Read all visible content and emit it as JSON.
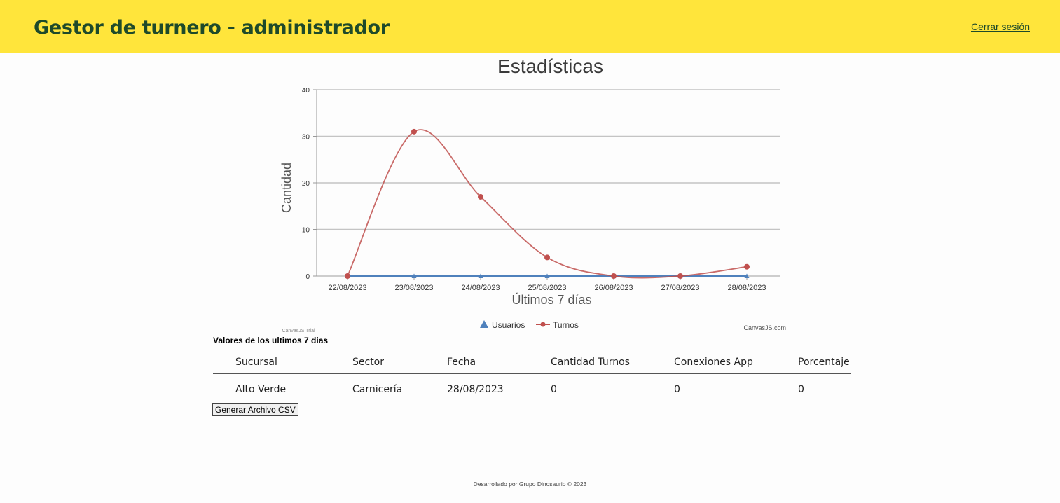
{
  "header": {
    "title": "Gestor de turnero - administrador",
    "logout_label": "Cerrar sesión"
  },
  "chart_data": {
    "type": "line",
    "title": "Estadísticas",
    "xlabel": "Últimos 7 días",
    "ylabel": "Cantidad",
    "categories": [
      "22/08/2023",
      "23/08/2023",
      "24/08/2023",
      "25/08/2023",
      "26/08/2023",
      "27/08/2023",
      "28/08/2023"
    ],
    "ylim": [
      0,
      40
    ],
    "yticks": [
      0,
      10,
      20,
      30,
      40
    ],
    "grid": true,
    "legend_placement": "bottom",
    "series": [
      {
        "name": "Usuarios",
        "marker": "triangle",
        "color": "#4f81bc",
        "values": [
          0,
          0,
          0,
          0,
          0,
          0,
          0
        ]
      },
      {
        "name": "Turnos",
        "marker": "circle",
        "color": "#c0504e",
        "values": [
          0,
          31,
          17,
          4,
          0,
          0,
          2
        ]
      }
    ],
    "annotations": {
      "trial": "CanvasJS Trial",
      "credit": "CanvasJS.com"
    }
  },
  "table_section": {
    "title": "Valores de los ultimos 7 dias",
    "columns": [
      "Sucursal",
      "Sector",
      "Fecha",
      "Cantidad Turnos",
      "Conexiones App",
      "Porcentaje"
    ],
    "rows": [
      [
        "Alto Verde",
        "Carnicería",
        "28/08/2023",
        "0",
        "0",
        "0"
      ]
    ]
  },
  "button_csv": "Generar Archivo CSV",
  "footer": "Desarrollado por Grupo Dinosaurio © 2023"
}
